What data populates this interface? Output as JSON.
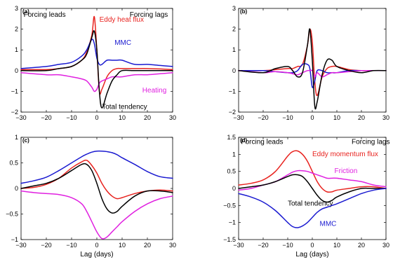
{
  "chart_data": [
    {
      "panel_label": "(a)",
      "type": "line",
      "xlim": [
        -30,
        30
      ],
      "ylim": [
        -2,
        3
      ],
      "xticks": [
        -30,
        -20,
        -10,
        0,
        10,
        20,
        30
      ],
      "yticks": [
        -2,
        -1,
        0,
        1,
        2,
        3
      ],
      "xlabel": "",
      "annotations": [
        {
          "text": "Forcing leads",
          "x": -29,
          "y": 2.6,
          "color": "#000000"
        },
        {
          "text": "Forcing lags",
          "x": 13,
          "y": 2.6,
          "color": "#000000"
        }
      ],
      "series": [
        {
          "name": "Eddy heat flux",
          "color": "#e8231f",
          "label_pos": [
            1,
            2.35
          ],
          "x": [
            -30,
            -20,
            -15,
            -10,
            -6,
            -4,
            -2,
            -1,
            0,
            1,
            2,
            4,
            6,
            8,
            10,
            15,
            20,
            25,
            30
          ],
          "y": [
            0.05,
            0.05,
            0.1,
            0.2,
            0.5,
            0.9,
            1.7,
            2.6,
            1.0,
            -1.0,
            -0.9,
            -0.3,
            0.0,
            0.1,
            0.1,
            0.1,
            0.1,
            0.08,
            0.05
          ]
        },
        {
          "name": "MMC",
          "color": "#1a1ad0",
          "label_pos": [
            7,
            1.25
          ],
          "x": [
            -30,
            -20,
            -15,
            -10,
            -6,
            -4,
            -2,
            -1,
            0,
            1,
            2,
            4,
            6,
            8,
            10,
            15,
            20,
            25,
            30
          ],
          "y": [
            0.1,
            0.2,
            0.3,
            0.4,
            0.7,
            1.0,
            1.5,
            1.3,
            0.6,
            0.3,
            0.3,
            0.5,
            0.5,
            0.5,
            0.5,
            0.3,
            0.3,
            0.25,
            0.2
          ]
        },
        {
          "name": "Heating",
          "color": "#e020e0",
          "label_pos": [
            18,
            -1.05
          ],
          "x": [
            -30,
            -20,
            -15,
            -10,
            -6,
            -4,
            -2,
            -1,
            0,
            1,
            2,
            4,
            6,
            8,
            10,
            15,
            20,
            25,
            30
          ],
          "y": [
            -0.1,
            -0.2,
            -0.2,
            -0.3,
            -0.4,
            -0.5,
            -0.8,
            -1.0,
            -0.9,
            -0.6,
            -0.5,
            -0.4,
            -0.3,
            -0.3,
            -0.3,
            -0.2,
            -0.2,
            -0.15,
            -0.1
          ]
        },
        {
          "name": "Total tendency",
          "color": "#000000",
          "label_pos": [
            2,
            -1.85
          ],
          "x": [
            -30,
            -20,
            -15,
            -10,
            -6,
            -4,
            -2,
            -1,
            0,
            1,
            2,
            4,
            6,
            8,
            10,
            15,
            20,
            25,
            30
          ],
          "y": [
            0.0,
            0.0,
            0.1,
            0.2,
            0.5,
            0.8,
            1.6,
            1.9,
            1.0,
            -1.0,
            -1.8,
            -1.1,
            -0.5,
            -0.2,
            0.0,
            0.0,
            0.0,
            0.0,
            0.0
          ]
        }
      ]
    },
    {
      "panel_label": "(b)",
      "type": "line",
      "xlim": [
        -30,
        30
      ],
      "ylim": [
        -2,
        3
      ],
      "xticks": [
        -30,
        -20,
        -10,
        0,
        10,
        20,
        30
      ],
      "yticks": [
        -2,
        -1,
        0,
        1,
        2,
        3
      ],
      "xlabel": "",
      "annotations": [],
      "series": [
        {
          "name": "",
          "color": "#e8231f",
          "x": [
            -30,
            -20,
            -15,
            -10,
            -8,
            -6,
            -4,
            -2,
            -1,
            0,
            1,
            2,
            4,
            6,
            8,
            10,
            15,
            20,
            25,
            30
          ],
          "y": [
            0.0,
            0.0,
            0.05,
            0.1,
            0.1,
            0.2,
            0.3,
            1.2,
            2.0,
            1.4,
            -0.5,
            -1.2,
            -0.3,
            0.1,
            0.2,
            0.2,
            0.05,
            0.0,
            0.0,
            0.0
          ]
        },
        {
          "name": "",
          "color": "#1a1ad0",
          "x": [
            -30,
            -20,
            -15,
            -10,
            -8,
            -6,
            -4,
            -2,
            -1,
            0,
            1,
            2,
            4,
            6,
            8,
            10,
            15,
            20,
            25,
            30
          ],
          "y": [
            0.0,
            0.0,
            -0.05,
            -0.1,
            -0.1,
            0.0,
            0.3,
            0.3,
            0.1,
            -0.8,
            -0.5,
            0.0,
            0.0,
            -0.1,
            -0.1,
            -0.1,
            0.0,
            0.0,
            0.0,
            0.0
          ]
        },
        {
          "name": "",
          "color": "#e020e0",
          "x": [
            -30,
            -20,
            -15,
            -10,
            -8,
            -6,
            -4,
            -2,
            -1,
            0,
            1,
            2,
            4,
            6,
            8,
            10,
            15,
            20,
            25,
            30
          ],
          "y": [
            0.0,
            -0.1,
            -0.05,
            -0.1,
            -0.15,
            -0.2,
            -0.1,
            0.0,
            0.0,
            0.0,
            -0.3,
            -0.1,
            -0.3,
            -0.2,
            -0.1,
            -0.1,
            -0.05,
            0.0,
            0.0,
            0.0
          ]
        },
        {
          "name": "",
          "color": "#000000",
          "x": [
            -30,
            -20,
            -15,
            -10,
            -8,
            -6,
            -4,
            -2,
            -1,
            0,
            1,
            2,
            4,
            6,
            8,
            10,
            15,
            20,
            25,
            30
          ],
          "y": [
            0.0,
            -0.1,
            0.1,
            0.2,
            0.0,
            -0.3,
            -0.1,
            1.2,
            2.0,
            0.5,
            -1.7,
            -1.5,
            -0.2,
            0.5,
            0.5,
            0.2,
            0.0,
            -0.1,
            0.0,
            0.0
          ]
        }
      ]
    },
    {
      "panel_label": "(c)",
      "type": "line",
      "xlim": [
        -30,
        30
      ],
      "ylim": [
        -1,
        1
      ],
      "xticks": [
        -30,
        -20,
        -10,
        0,
        10,
        20,
        30
      ],
      "yticks": [
        -1,
        -0.5,
        0,
        0.5,
        1
      ],
      "xlabel": "Lag (days)",
      "annotations": [],
      "series": [
        {
          "name": "",
          "color": "#e8231f",
          "x": [
            -30,
            -25,
            -20,
            -15,
            -10,
            -6,
            -4,
            -2,
            0,
            2,
            4,
            6,
            8,
            10,
            15,
            20,
            25,
            30
          ],
          "y": [
            0.0,
            0.02,
            0.08,
            0.2,
            0.4,
            0.52,
            0.55,
            0.45,
            0.3,
            0.1,
            -0.05,
            -0.15,
            -0.2,
            -0.18,
            -0.1,
            -0.05,
            -0.03,
            -0.05
          ]
        },
        {
          "name": "",
          "color": "#1a1ad0",
          "x": [
            -30,
            -25,
            -20,
            -15,
            -10,
            -6,
            -4,
            -2,
            0,
            2,
            4,
            6,
            8,
            10,
            15,
            20,
            25,
            30
          ],
          "y": [
            0.1,
            0.15,
            0.22,
            0.35,
            0.5,
            0.62,
            0.67,
            0.71,
            0.73,
            0.73,
            0.72,
            0.7,
            0.66,
            0.6,
            0.47,
            0.33,
            0.23,
            0.2
          ]
        },
        {
          "name": "",
          "color": "#e020e0",
          "x": [
            -30,
            -25,
            -20,
            -15,
            -10,
            -6,
            -4,
            -2,
            0,
            2,
            4,
            6,
            8,
            10,
            15,
            20,
            25,
            30
          ],
          "y": [
            -0.05,
            -0.08,
            -0.1,
            -0.12,
            -0.18,
            -0.3,
            -0.45,
            -0.65,
            -0.85,
            -0.98,
            -0.95,
            -0.85,
            -0.75,
            -0.65,
            -0.45,
            -0.3,
            -0.2,
            -0.15
          ]
        },
        {
          "name": "",
          "color": "#000000",
          "x": [
            -30,
            -25,
            -20,
            -15,
            -10,
            -6,
            -4,
            -2,
            0,
            2,
            4,
            6,
            8,
            10,
            15,
            20,
            25,
            30
          ],
          "y": [
            0.0,
            0.05,
            0.1,
            0.2,
            0.35,
            0.47,
            0.47,
            0.35,
            0.1,
            -0.2,
            -0.4,
            -0.48,
            -0.45,
            -0.35,
            -0.15,
            -0.05,
            -0.05,
            -0.08
          ]
        }
      ]
    },
    {
      "panel_label": "(d)",
      "type": "line",
      "xlim": [
        -30,
        30
      ],
      "ylim": [
        -1.5,
        1.5
      ],
      "xticks": [
        -30,
        -20,
        -10,
        0,
        10,
        20,
        30
      ],
      "yticks": [
        -1.5,
        -1,
        -0.5,
        0,
        0.5,
        1,
        1.5
      ],
      "xlabel": "Lag (days)",
      "annotations": [
        {
          "text": "Forcing leads",
          "x": -29,
          "y": 1.3,
          "color": "#000000"
        },
        {
          "text": "Forcing lags",
          "x": 16,
          "y": 1.3,
          "color": "#000000"
        }
      ],
      "series": [
        {
          "name": "Eddy momentum flux",
          "color": "#e8231f",
          "label_pos": [
            0,
            0.95
          ],
          "x": [
            -30,
            -25,
            -20,
            -15,
            -10,
            -8,
            -6,
            -4,
            -2,
            0,
            2,
            4,
            6,
            8,
            10,
            15,
            20,
            25,
            30
          ],
          "y": [
            0.1,
            0.15,
            0.25,
            0.5,
            0.95,
            1.08,
            1.1,
            1.0,
            0.8,
            0.5,
            0.2,
            0.0,
            -0.1,
            -0.1,
            -0.05,
            0.0,
            0.05,
            0.05,
            0.0
          ]
        },
        {
          "name": "Friction",
          "color": "#e020e0",
          "label_pos": [
            9,
            0.45
          ],
          "x": [
            -30,
            -25,
            -20,
            -15,
            -10,
            -8,
            -6,
            -4,
            -2,
            0,
            2,
            4,
            6,
            8,
            10,
            15,
            20,
            25,
            30
          ],
          "y": [
            -0.05,
            0.0,
            0.1,
            0.2,
            0.4,
            0.48,
            0.52,
            0.52,
            0.5,
            0.45,
            0.4,
            0.35,
            0.3,
            0.3,
            0.3,
            0.25,
            0.2,
            0.1,
            0.05
          ]
        },
        {
          "name": "Total tendency",
          "color": "#000000",
          "label_pos": [
            -10,
            -0.5
          ],
          "x": [
            -30,
            -25,
            -20,
            -15,
            -10,
            -8,
            -6,
            -4,
            -2,
            0,
            2,
            4,
            6,
            8,
            10,
            15,
            20,
            25,
            30
          ],
          "y": [
            0.0,
            0.05,
            0.1,
            0.2,
            0.35,
            0.4,
            0.4,
            0.35,
            0.2,
            0.0,
            -0.2,
            -0.35,
            -0.4,
            -0.35,
            -0.25,
            -0.1,
            0.0,
            0.0,
            0.0
          ]
        },
        {
          "name": "MMC",
          "color": "#1a1ad0",
          "label_pos": [
            3,
            -1.1
          ],
          "x": [
            -30,
            -25,
            -20,
            -15,
            -10,
            -8,
            -6,
            -4,
            -2,
            0,
            2,
            4,
            6,
            8,
            10,
            15,
            20,
            25,
            30
          ],
          "y": [
            -0.15,
            -0.25,
            -0.4,
            -0.65,
            -1.0,
            -1.12,
            -1.15,
            -1.1,
            -1.0,
            -0.85,
            -0.7,
            -0.6,
            -0.55,
            -0.5,
            -0.45,
            -0.3,
            -0.15,
            -0.05,
            0.0
          ]
        }
      ]
    }
  ]
}
